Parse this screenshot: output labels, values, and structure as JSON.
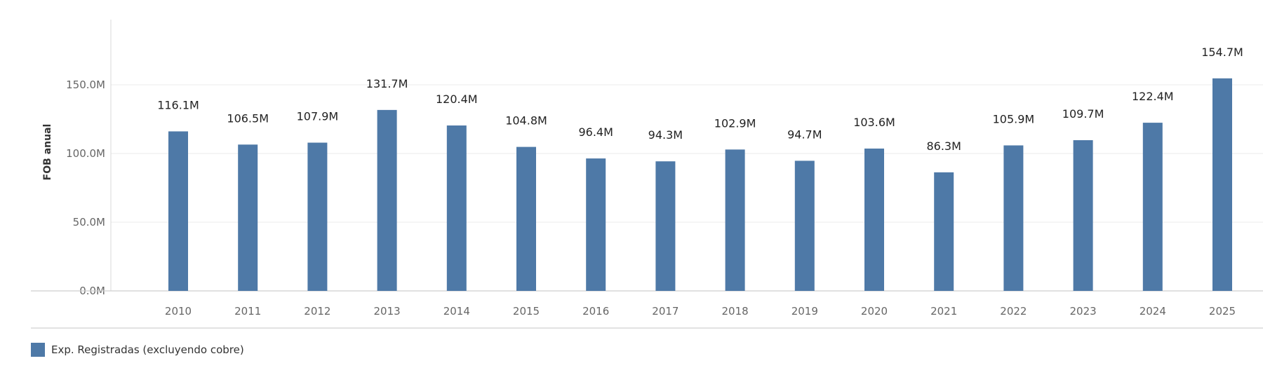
{
  "chart_data": {
    "type": "bar",
    "categories": [
      "2010",
      "2011",
      "2012",
      "2013",
      "2014",
      "2015",
      "2016",
      "2017",
      "2018",
      "2019",
      "2020",
      "2021",
      "2022",
      "2023",
      "2024",
      "2025"
    ],
    "series": [
      {
        "name": "Exp. Registradas (excluyendo cobre)",
        "values": [
          116.1,
          106.5,
          107.9,
          131.7,
          120.4,
          104.8,
          96.4,
          94.3,
          102.9,
          94.7,
          103.6,
          86.3,
          105.9,
          109.7,
          122.4,
          154.7
        ],
        "labels": [
          "116.1M",
          "106.5M",
          "107.9M",
          "131.7M",
          "120.4M",
          "104.8M",
          "96.4M",
          "94.3M",
          "102.9M",
          "94.7M",
          "103.6M",
          "86.3M",
          "105.9M",
          "109.7M",
          "122.4M",
          "154.7M"
        ],
        "color": "#4e79a7"
      }
    ],
    "ylabel": "FOB anual",
    "xlabel": "",
    "ylim": [
      0,
      150
    ],
    "yticks": [
      {
        "value": 0,
        "label": "0.0M"
      },
      {
        "value": 50,
        "label": "50.0M"
      },
      {
        "value": 100,
        "label": "100.0M"
      },
      {
        "value": 150,
        "label": "150.0M"
      }
    ],
    "grid": true,
    "legend": "bottom-left"
  },
  "legend": {
    "label": "Exp. Registradas (excluyendo cobre)",
    "color": "#4e79a7"
  }
}
